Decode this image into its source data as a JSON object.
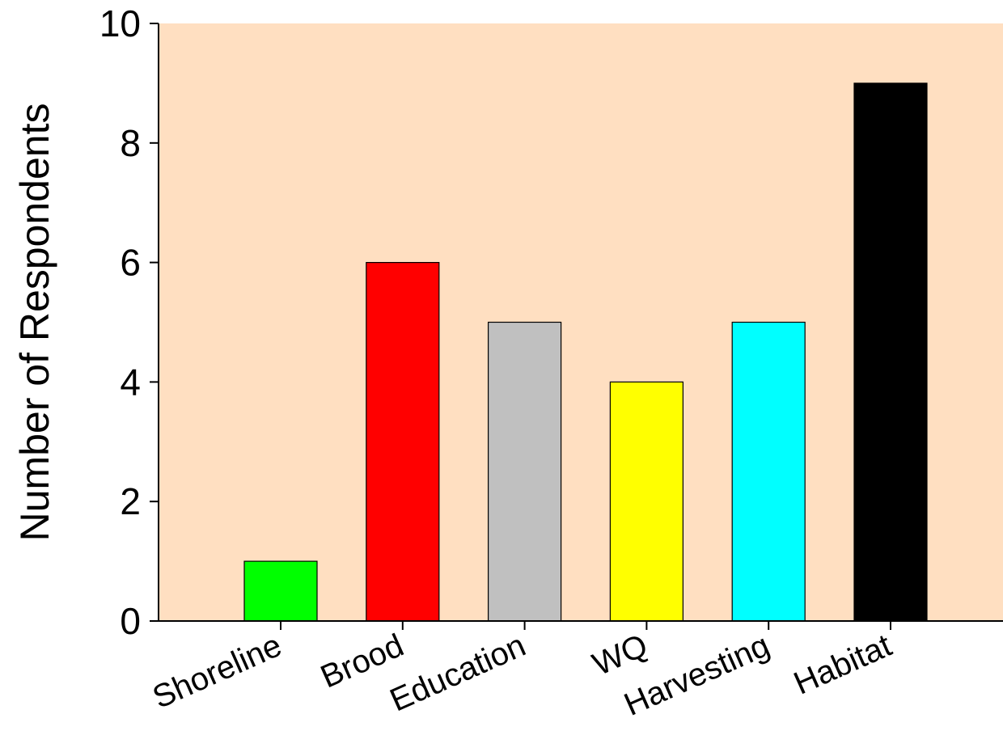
{
  "chart_data": {
    "type": "bar",
    "categories": [
      "Shoreline",
      "Brood",
      "Education",
      "WQ",
      "Harvesting",
      "Habitat"
    ],
    "values": [
      1,
      6,
      5,
      4,
      5,
      9
    ],
    "bar_colors": [
      "#00ff00",
      "#ff0000",
      "#c0c0c0",
      "#ffff00",
      "#00ffff",
      "#000000"
    ],
    "plot_background": "#ffdfc1",
    "title": "",
    "xlabel": "",
    "ylabel": "Number of Respondents",
    "ylim": [
      0,
      10
    ],
    "yticks": [
      "0",
      "2",
      "4",
      "6",
      "8",
      "10"
    ],
    "grid": false,
    "legend": "none"
  }
}
